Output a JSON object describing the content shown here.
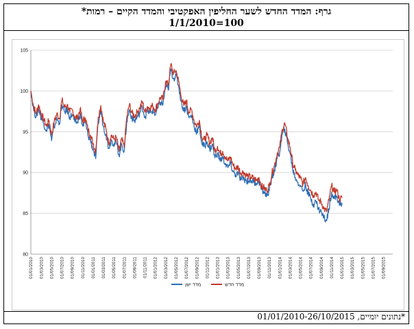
{
  "title": {
    "line1": "גרף: המדד החדש לשער החליפין האפקטיבי והמדד הקיים – רמות*",
    "line2": "1/1/2010=100"
  },
  "footnote": "*נתונים יומיים, 01/01/2010-26/10/2015",
  "chart_data": {
    "type": "line",
    "ylim": [
      80,
      105
    ],
    "yticks": [
      80,
      85,
      90,
      95,
      100,
      105
    ],
    "x_tick_labels": [
      "01/01/2010",
      "01/03/2010",
      "01/05/2010",
      "01/07/2010",
      "01/09/2010",
      "01/11/2010",
      "01/01/2011",
      "01/03/2011",
      "01/05/2011",
      "01/07/2011",
      "01/09/2011",
      "01/11/2011",
      "01/01/2012",
      "01/03/2012",
      "01/05/2012",
      "01/07/2012",
      "01/09/2012",
      "01/11/2012",
      "01/01/2013",
      "01/03/2013",
      "01/05/2013",
      "01/07/2013",
      "01/09/2013",
      "01/11/2013",
      "01/01/2014",
      "01/03/2014",
      "01/05/2014",
      "01/07/2014",
      "01/09/2014",
      "01/11/2014",
      "01/01/2015",
      "01/03/2015",
      "01/05/2015",
      "01/07/2015",
      "01/09/2015"
    ],
    "x_month_range": [
      0,
      69.8
    ],
    "legend_position": "bottom",
    "series": [
      {
        "name": "מדד חדש",
        "color": "#c0392b",
        "points": [
          [
            0,
            100
          ],
          [
            0.5,
            98.2
          ],
          [
            1,
            97.2
          ],
          [
            1.5,
            98.3
          ],
          [
            2,
            97.2
          ],
          [
            2.5,
            96.5
          ],
          [
            3,
            95.7
          ],
          [
            3.5,
            96.4
          ],
          [
            4,
            94.6
          ],
          [
            4.5,
            96.2
          ],
          [
            5,
            97.2
          ],
          [
            5.5,
            96.6
          ],
          [
            6,
            98.9
          ],
          [
            6.5,
            98.0
          ],
          [
            7,
            98.3
          ],
          [
            7.5,
            97.4
          ],
          [
            8,
            97.7
          ],
          [
            8.5,
            96.8
          ],
          [
            9,
            96.7
          ],
          [
            9.5,
            97.8
          ],
          [
            10,
            96.3
          ],
          [
            10.5,
            96.7
          ],
          [
            11,
            95.3
          ],
          [
            11.5,
            94.6
          ],
          [
            12,
            93.6
          ],
          [
            12.5,
            92.6
          ],
          [
            13,
            96.8
          ],
          [
            13.5,
            98.2
          ],
          [
            14,
            96.2
          ],
          [
            14.5,
            95.3
          ],
          [
            15,
            93.6
          ],
          [
            15.5,
            94.6
          ],
          [
            16,
            94.1
          ],
          [
            16.5,
            94.3
          ],
          [
            17,
            92.6
          ],
          [
            17.5,
            94.1
          ],
          [
            18,
            93.1
          ],
          [
            18.5,
            96.8
          ],
          [
            19,
            98.3
          ],
          [
            19.5,
            97.3
          ],
          [
            20,
            96.9
          ],
          [
            20.5,
            97.4
          ],
          [
            21,
            97.9
          ],
          [
            21.5,
            98.7
          ],
          [
            22,
            97.4
          ],
          [
            22.5,
            98.1
          ],
          [
            23,
            97.9
          ],
          [
            23.5,
            98.2
          ],
          [
            24,
            97.7
          ],
          [
            24.5,
            98.5
          ],
          [
            25,
            99.2
          ],
          [
            25.5,
            99.0
          ],
          [
            26,
            101.2
          ],
          [
            26.5,
            100.7
          ],
          [
            27,
            103.3
          ],
          [
            27.5,
            102.1
          ],
          [
            28,
            102.5
          ],
          [
            28.5,
            101.2
          ],
          [
            29,
            99.3
          ],
          [
            29.5,
            98.2
          ],
          [
            30,
            98.8
          ],
          [
            30.5,
            97.4
          ],
          [
            31,
            97.7
          ],
          [
            31.5,
            96.3
          ],
          [
            32,
            95.7
          ],
          [
            32.5,
            96.4
          ],
          [
            33,
            94.3
          ],
          [
            33.5,
            94.0
          ],
          [
            34,
            94.6
          ],
          [
            34.5,
            93.6
          ],
          [
            35,
            94.3
          ],
          [
            35.5,
            92.6
          ],
          [
            36,
            93.2
          ],
          [
            36.5,
            92.3
          ],
          [
            37,
            92.6
          ],
          [
            37.5,
            91.9
          ],
          [
            38,
            91.4
          ],
          [
            38.5,
            91.9
          ],
          [
            39,
            90.9
          ],
          [
            39.5,
            90.5
          ],
          [
            40,
            90.7
          ],
          [
            40.5,
            89.9
          ],
          [
            41,
            90.1
          ],
          [
            41.5,
            89.7
          ],
          [
            42,
            89.5
          ],
          [
            42.5,
            89.4
          ],
          [
            43,
            89.3
          ],
          [
            43.5,
            89.0
          ],
          [
            44,
            89.4
          ],
          [
            44.5,
            88.3
          ],
          [
            45,
            88.1
          ],
          [
            45.5,
            87.8
          ],
          [
            46,
            88.4
          ],
          [
            46.5,
            89.9
          ],
          [
            47,
            90.9
          ],
          [
            47.5,
            92.3
          ],
          [
            48,
            93.1
          ],
          [
            48.5,
            95.3
          ],
          [
            49,
            96.0
          ],
          [
            49.5,
            94.3
          ],
          [
            50,
            93.1
          ],
          [
            50.5,
            91.2
          ],
          [
            51,
            90.3
          ],
          [
            51.5,
            89.7
          ],
          [
            52,
            89.3
          ],
          [
            52.5,
            88.6
          ],
          [
            53,
            89.4
          ],
          [
            53.5,
            88.4
          ],
          [
            54,
            87.8
          ],
          [
            54.5,
            87.2
          ],
          [
            55,
            87.6
          ],
          [
            55.5,
            86.6
          ],
          [
            56,
            86.4
          ],
          [
            56.5,
            85.6
          ],
          [
            57,
            85.2
          ],
          [
            57.5,
            86.6
          ],
          [
            58,
            88.4
          ],
          [
            58.5,
            87.6
          ],
          [
            59,
            87.9
          ],
          [
            59.5,
            86.7
          ],
          [
            60,
            86.9
          ]
        ]
      },
      {
        "name": "מדד ישן",
        "color": "#2e6db4",
        "points": [
          [
            0,
            100
          ],
          [
            0.5,
            97.9
          ],
          [
            1,
            96.8
          ],
          [
            1.5,
            97.8
          ],
          [
            2,
            96.7
          ],
          [
            2.5,
            96.0
          ],
          [
            3,
            95.2
          ],
          [
            3.5,
            95.9
          ],
          [
            4,
            93.9
          ],
          [
            4.5,
            95.6
          ],
          [
            5,
            96.6
          ],
          [
            5.5,
            96.0
          ],
          [
            6,
            98.3
          ],
          [
            6.5,
            97.4
          ],
          [
            7,
            97.7
          ],
          [
            7.5,
            96.8
          ],
          [
            8,
            97.1
          ],
          [
            8.5,
            96.2
          ],
          [
            9,
            96.1
          ],
          [
            9.5,
            97.2
          ],
          [
            10,
            95.7
          ],
          [
            10.5,
            96.1
          ],
          [
            11,
            94.6
          ],
          [
            11.5,
            93.9
          ],
          [
            12,
            92.9
          ],
          [
            12.5,
            91.7
          ],
          [
            13,
            96.1
          ],
          [
            13.5,
            97.6
          ],
          [
            14,
            95.6
          ],
          [
            14.5,
            94.7
          ],
          [
            15,
            93.0
          ],
          [
            15.5,
            94.0
          ],
          [
            16,
            93.5
          ],
          [
            16.5,
            93.7
          ],
          [
            17,
            92.1
          ],
          [
            17.5,
            93.5
          ],
          [
            18,
            92.6
          ],
          [
            18.5,
            96.2
          ],
          [
            19,
            97.7
          ],
          [
            19.5,
            96.7
          ],
          [
            20,
            96.3
          ],
          [
            20.5,
            96.8
          ],
          [
            21,
            97.3
          ],
          [
            21.5,
            98.1
          ],
          [
            22,
            96.8
          ],
          [
            22.5,
            97.5
          ],
          [
            23,
            97.3
          ],
          [
            23.5,
            97.6
          ],
          [
            24,
            97.1
          ],
          [
            24.5,
            97.9
          ],
          [
            25,
            98.6
          ],
          [
            25.5,
            98.4
          ],
          [
            26,
            100.6
          ],
          [
            26.5,
            100.1
          ],
          [
            27,
            102.7
          ],
          [
            27.5,
            101.5
          ],
          [
            28,
            101.9
          ],
          [
            28.5,
            100.6
          ],
          [
            29,
            98.7
          ],
          [
            29.5,
            97.6
          ],
          [
            30,
            98.1
          ],
          [
            30.5,
            96.7
          ],
          [
            31,
            97.0
          ],
          [
            31.5,
            95.6
          ],
          [
            32,
            95.0
          ],
          [
            32.5,
            95.6
          ],
          [
            33,
            93.5
          ],
          [
            33.5,
            93.2
          ],
          [
            34,
            93.8
          ],
          [
            34.5,
            92.8
          ],
          [
            35,
            93.5
          ],
          [
            35.5,
            91.8
          ],
          [
            36,
            92.4
          ],
          [
            36.5,
            91.5
          ],
          [
            37,
            91.8
          ],
          [
            37.5,
            91.1
          ],
          [
            38,
            90.6
          ],
          [
            38.5,
            91.1
          ],
          [
            39,
            90.1
          ],
          [
            39.5,
            89.7
          ],
          [
            40,
            89.9
          ],
          [
            40.5,
            89.1
          ],
          [
            41,
            89.3
          ],
          [
            41.5,
            89.0
          ],
          [
            42,
            89.0
          ],
          [
            42.5,
            89.0
          ],
          [
            43,
            88.9
          ],
          [
            43.5,
            88.7
          ],
          [
            44,
            89.0
          ],
          [
            44.5,
            87.9
          ],
          [
            45,
            87.6
          ],
          [
            45.5,
            87.2
          ],
          [
            46,
            87.8
          ],
          [
            46.5,
            89.3
          ],
          [
            47,
            90.3
          ],
          [
            47.5,
            91.7
          ],
          [
            48,
            92.5
          ],
          [
            48.5,
            94.7
          ],
          [
            49,
            95.3
          ],
          [
            49.5,
            93.6
          ],
          [
            50,
            92.4
          ],
          [
            50.5,
            90.4
          ],
          [
            51,
            89.4
          ],
          [
            51.5,
            88.8
          ],
          [
            52,
            88.4
          ],
          [
            52.5,
            87.7
          ],
          [
            53,
            88.5
          ],
          [
            53.5,
            87.4
          ],
          [
            54,
            86.8
          ],
          [
            54.5,
            86.1
          ],
          [
            55,
            86.5
          ],
          [
            55.5,
            85.5
          ],
          [
            56,
            85.2
          ],
          [
            56.5,
            84.5
          ],
          [
            57,
            84.1
          ],
          [
            57.5,
            85.6
          ],
          [
            58,
            87.6
          ],
          [
            58.5,
            86.8
          ],
          [
            59,
            87.1
          ],
          [
            59.5,
            86.0
          ],
          [
            60,
            86.3
          ]
        ]
      }
    ]
  }
}
